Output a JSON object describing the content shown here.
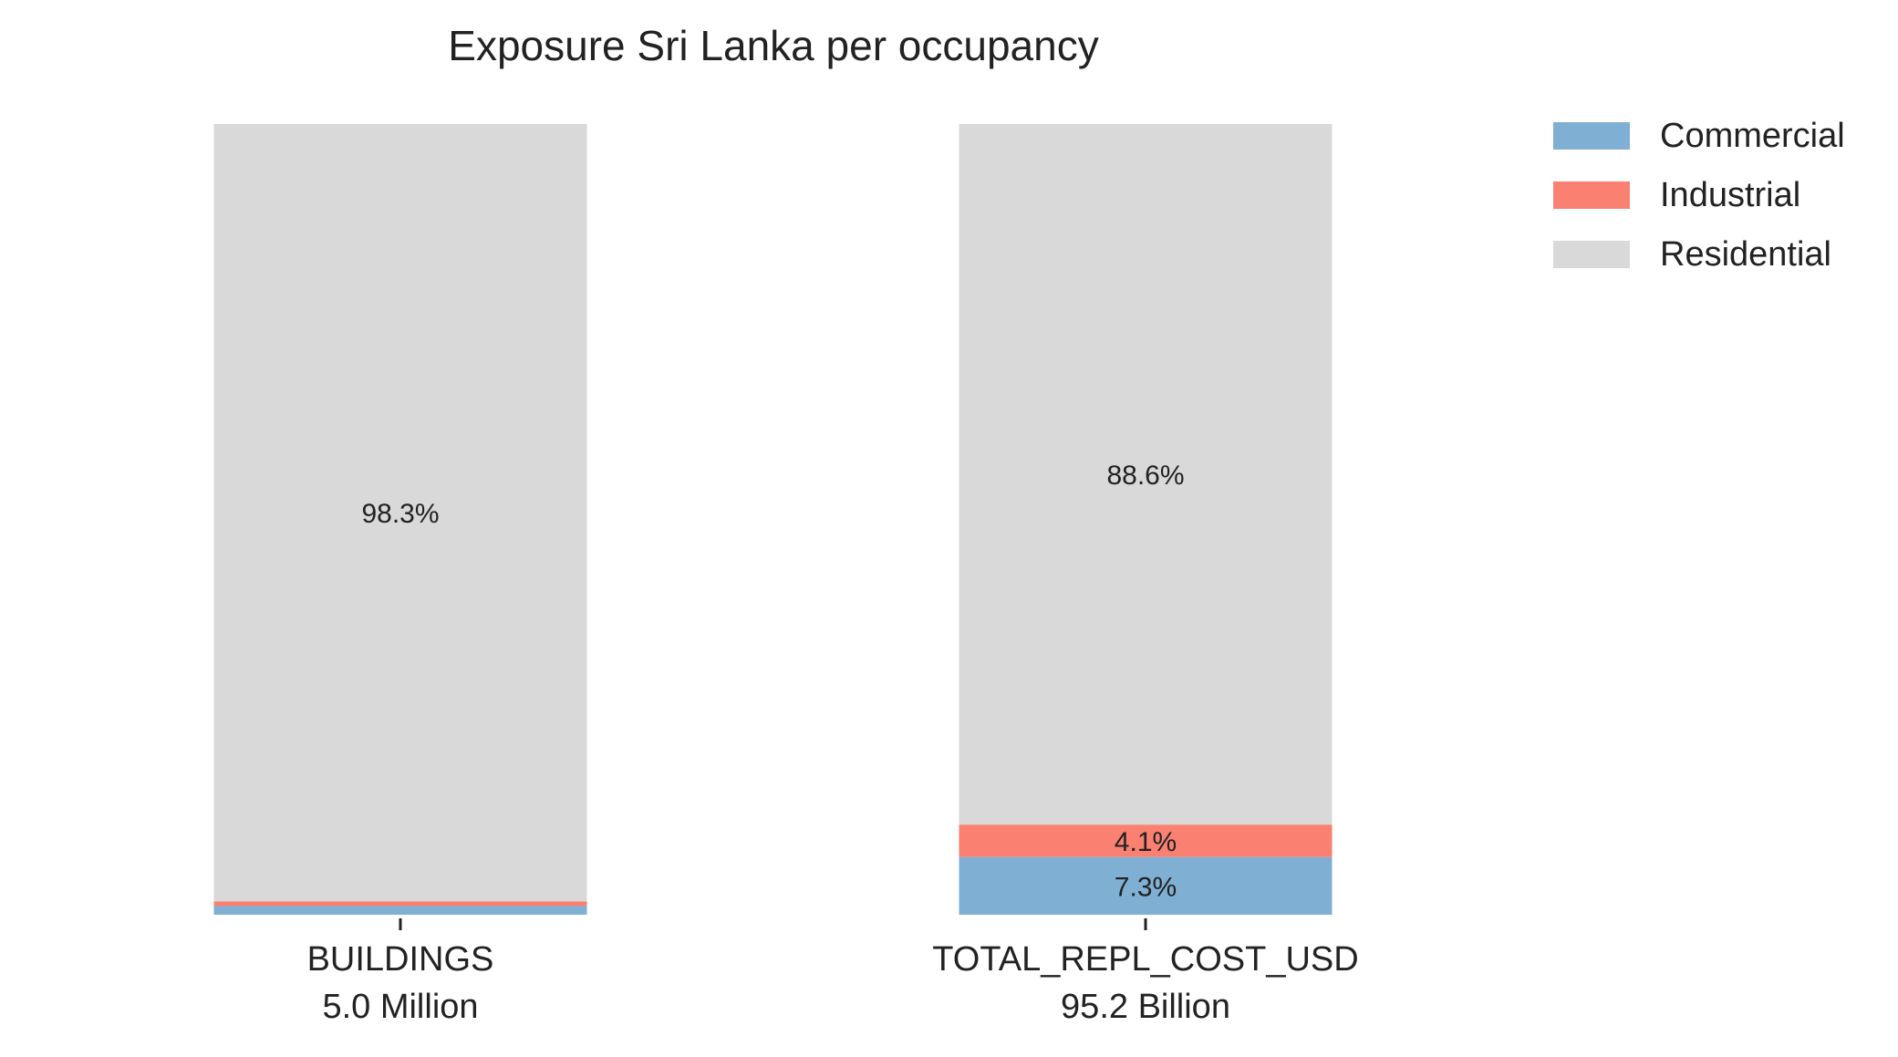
{
  "chart_data": {
    "type": "bar",
    "stacked": true,
    "normalized_percent": true,
    "title": "Exposure Sri Lanka per occupancy",
    "categories": [
      "BUILDINGS",
      "TOTAL_REPL_COST_USD"
    ],
    "category_totals": [
      "5.0 Million",
      "95.2 Billion"
    ],
    "series": [
      {
        "name": "Commercial",
        "color": "#7fb0d3",
        "values": [
          1.1,
          7.3
        ],
        "labels": [
          "",
          "7.3%"
        ]
      },
      {
        "name": "Industrial",
        "color": "#fa8072",
        "values": [
          0.6,
          4.1
        ],
        "labels": [
          "",
          "4.1%"
        ]
      },
      {
        "name": "Residential",
        "color": "#d9d9d9",
        "values": [
          98.3,
          88.6
        ],
        "labels": [
          "98.3%",
          "88.6%"
        ]
      }
    ],
    "ylim": [
      0,
      100
    ],
    "grid": false,
    "legend_position": "top-right"
  }
}
